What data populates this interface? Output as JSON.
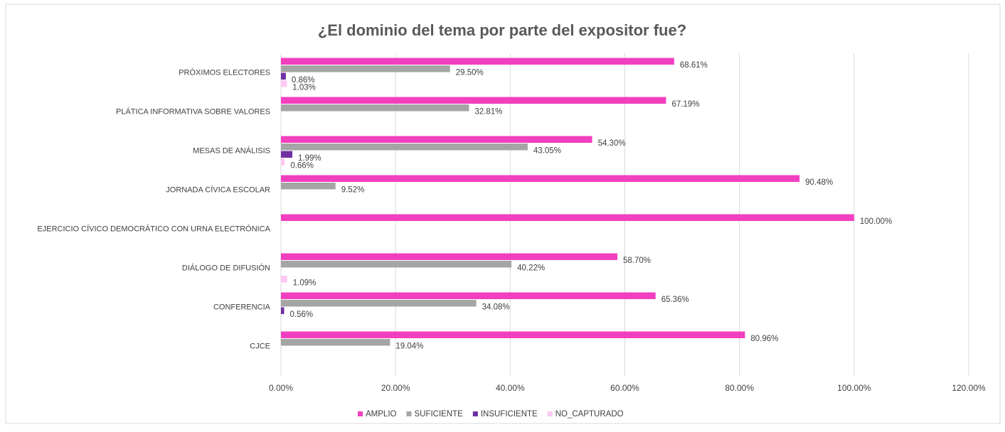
{
  "chart_data": {
    "type": "barh",
    "title": "¿El dominio del tema por parte del expositor fue?",
    "categories": [
      "PRÓXIMOS ELECTORES",
      "PLÁTICA INFORMATIVA SOBRE VALORES",
      "MESAS DE ANÁLISIS",
      "JORNADA CÍVICA ESCOLAR",
      "EJERCICIO CÍVICO DEMOCRÁTICO CON URNA ELECTRÓNICA",
      "DIÁLOGO DE DIFUSIÓN",
      "CONFERENCIA",
      "CJCE"
    ],
    "series": [
      {
        "name": "AMPLIO",
        "color": "#f23fbf",
        "values": [
          68.61,
          67.19,
          54.3,
          90.48,
          100,
          58.7,
          65.36,
          80.96
        ],
        "value_labels": [
          "68.61%",
          "67.19%",
          "54.30%",
          "90.48%",
          "100.00%",
          "58.70%",
          "65.36%",
          "80.96%"
        ]
      },
      {
        "name": "SUFICIENTE",
        "color": "#a5a5a5",
        "values": [
          29.5,
          32.81,
          43.05,
          9.52,
          null,
          40.22,
          34.08,
          19.04
        ],
        "value_labels": [
          "29.50%",
          "32.81%",
          "43.05%",
          "9.52%",
          null,
          "40.22%",
          "34.08%",
          "19.04%"
        ]
      },
      {
        "name": "INSUFICIENTE",
        "color": "#7030a0",
        "values": [
          0.86,
          null,
          1.99,
          null,
          null,
          null,
          0.56,
          null
        ],
        "value_labels": [
          "0.86%",
          null,
          "1.99%",
          null,
          null,
          null,
          "0.56%",
          null
        ]
      },
      {
        "name": "NO_CAPTURADO",
        "color": "#ffc8f2",
        "values": [
          1.03,
          null,
          0.66,
          null,
          null,
          1.09,
          null,
          null
        ],
        "value_labels": [
          "1.03%",
          null,
          "0.66%",
          null,
          null,
          "1.09%",
          null,
          null
        ]
      }
    ],
    "xlim": [
      0,
      120
    ],
    "xticks": [
      {
        "value": 0,
        "label": "0.00%"
      },
      {
        "value": 20,
        "label": "20.00%"
      },
      {
        "value": 40,
        "label": "40.00%"
      },
      {
        "value": 60,
        "label": "60.00%"
      },
      {
        "value": 80,
        "label": "80.00%"
      },
      {
        "value": 100,
        "label": "100.00%"
      },
      {
        "value": 120,
        "label": "120.00%"
      }
    ],
    "grid": true,
    "legend": "bottom"
  }
}
